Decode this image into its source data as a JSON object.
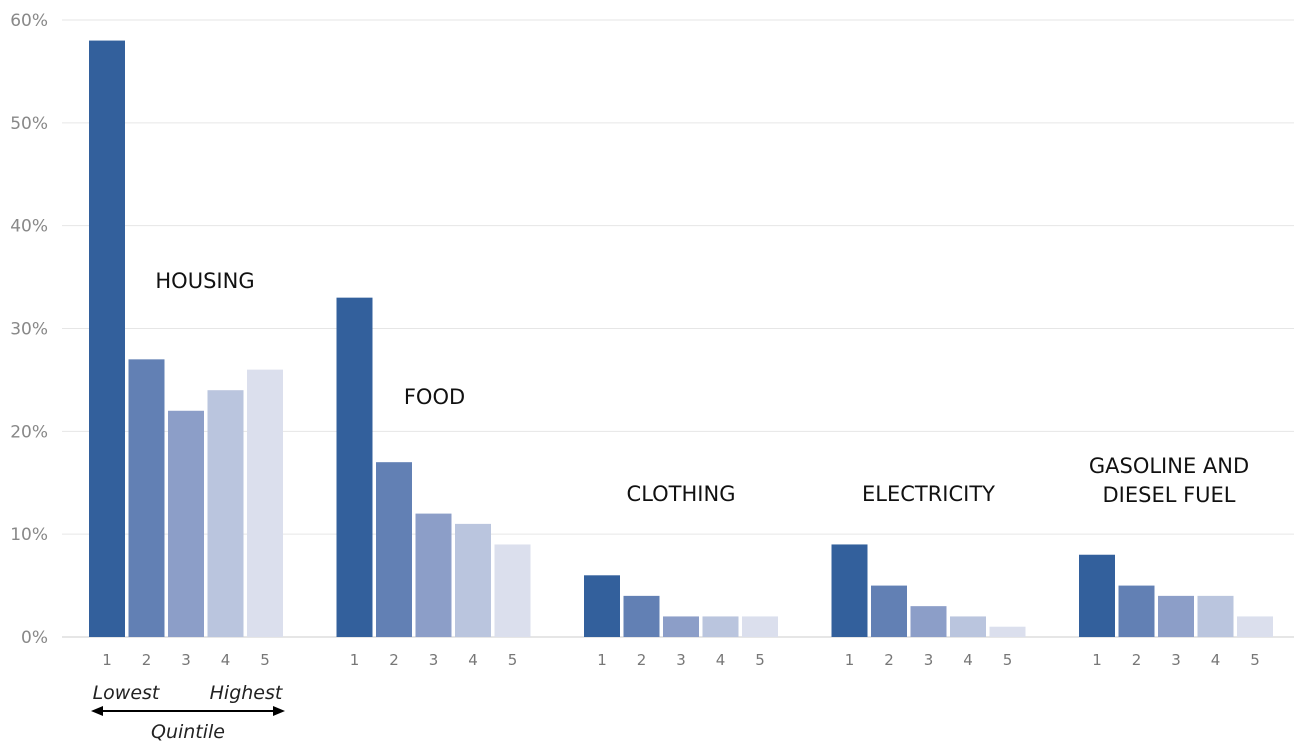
{
  "chart_data": {
    "type": "bar",
    "categories": [
      "HOUSING",
      "FOOD",
      "CLOTHING",
      "ELECTRICITY",
      "GASOLINE AND DIESEL FUEL"
    ],
    "category_label_lines": [
      [
        "HOUSING"
      ],
      [
        "FOOD"
      ],
      [
        "CLOTHING"
      ],
      [
        "ELECTRICITY"
      ],
      [
        "GASOLINE AND",
        "DIESEL FUEL"
      ]
    ],
    "series": [
      {
        "values": [
          58,
          33,
          6,
          9,
          8
        ]
      },
      {
        "values": [
          27,
          17,
          4,
          5,
          5
        ]
      },
      {
        "values": [
          22,
          12,
          2,
          3,
          4
        ]
      },
      {
        "values": [
          24,
          11,
          2,
          2,
          4
        ]
      },
      {
        "values": [
          26,
          9,
          2,
          1,
          2
        ]
      }
    ],
    "series_tick_labels": [
      "1",
      "2",
      "3",
      "4",
      "5"
    ],
    "series_colors": [
      "#33609c",
      "#6280b4",
      "#8c9ec8",
      "#bac5de",
      "#dbdfed"
    ],
    "ylim": [
      0,
      60
    ],
    "yticks": [
      0,
      10,
      20,
      30,
      40,
      50,
      60
    ],
    "ytick_labels": [
      "0%",
      "10%",
      "20%",
      "30%",
      "40%",
      "50%",
      "60%"
    ],
    "grid": true,
    "legend": {
      "low_label": "Lowest",
      "high_label": "Highest",
      "title": "Quintile"
    }
  }
}
